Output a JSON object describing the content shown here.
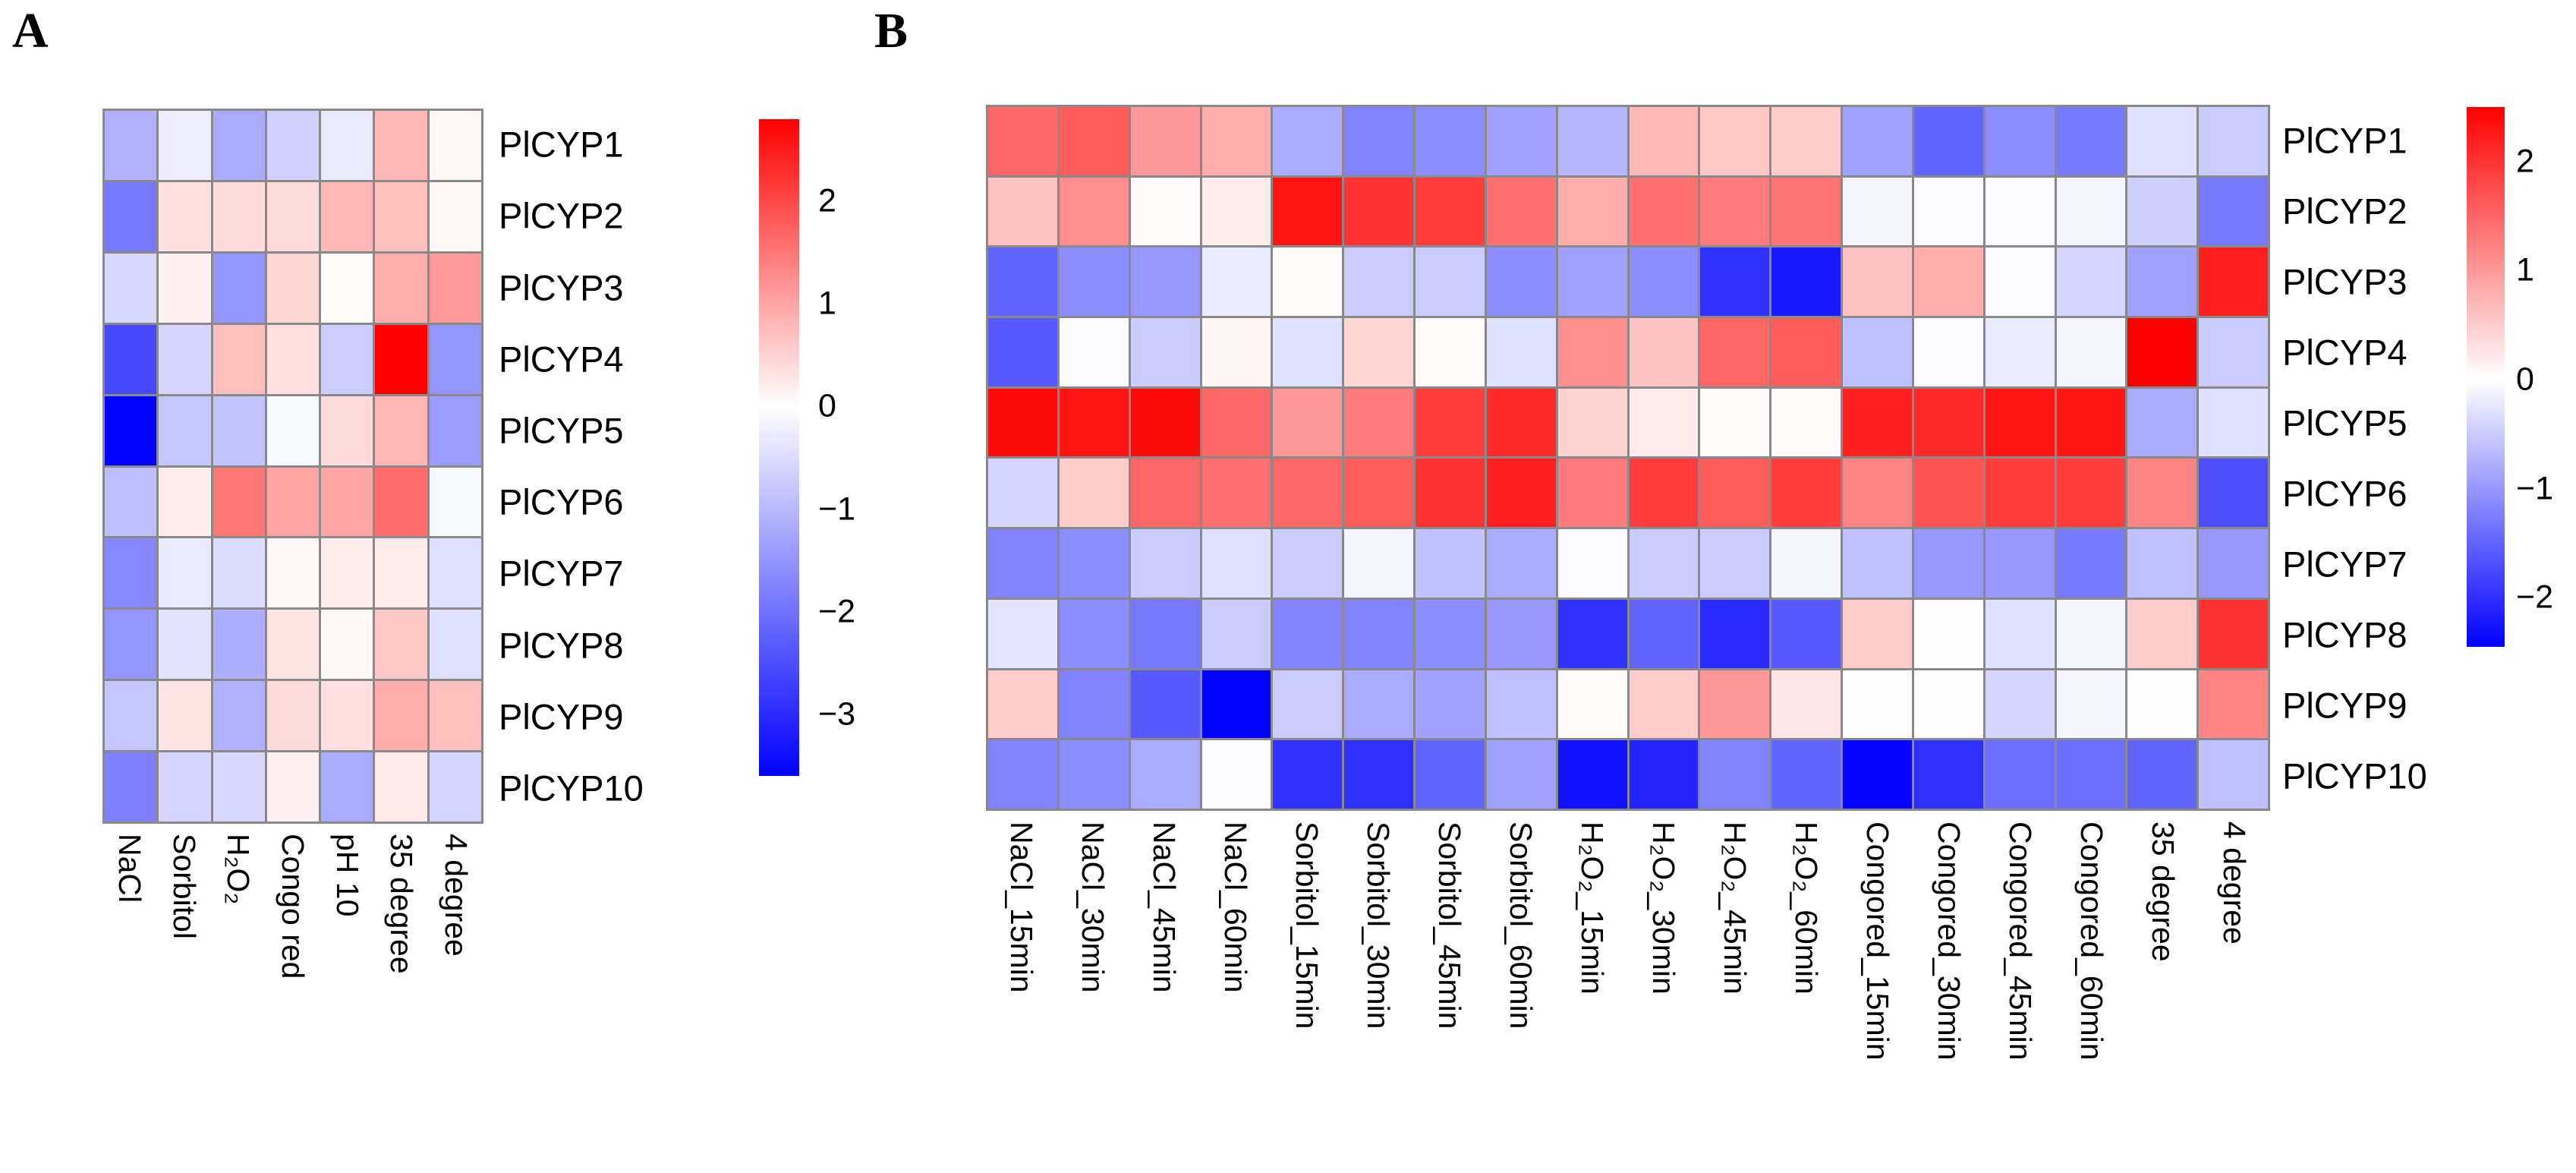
{
  "figure": {
    "type": "dual-heatmap-figure",
    "background": "#ffffff"
  },
  "colors": {
    "positive_max": "#ff0000",
    "zero": "#ffffff",
    "negative_min": "#0000ff",
    "cell_border": "#898989",
    "text": "#000000"
  },
  "chart_data": [
    {
      "type": "heatmap",
      "title": "A",
      "rows": [
        "PlCYP1",
        "PlCYP2",
        "PlCYP3",
        "PlCYP4",
        "PlCYP5",
        "PlCYP6",
        "PlCYP7",
        "PlCYP8",
        "PlCYP9",
        "PlCYP10"
      ],
      "columns": [
        "NaCl",
        "Sorbitol",
        "H₂O₂",
        "Congo red",
        "pH 10",
        "35 degree",
        "4 degree"
      ],
      "values": [
        [
          -1.1,
          -0.25,
          -1.2,
          -0.65,
          -0.3,
          0.8,
          0.1
        ],
        [
          -1.9,
          0.35,
          0.4,
          0.4,
          0.8,
          0.7,
          0.1
        ],
        [
          -0.55,
          0.15,
          -1.5,
          0.45,
          0.05,
          0.9,
          1.1
        ],
        [
          -2.6,
          -0.6,
          0.7,
          0.35,
          -0.7,
          2.8,
          -1.5
        ],
        [
          -3.6,
          -0.8,
          -0.85,
          -0.1,
          0.4,
          0.8,
          -1.4
        ],
        [
          -0.9,
          0.2,
          1.5,
          1.0,
          1.0,
          1.6,
          -0.1
        ],
        [
          -1.7,
          -0.3,
          -0.5,
          0.1,
          0.2,
          0.2,
          -0.45
        ],
        [
          -1.5,
          -0.4,
          -1.15,
          0.3,
          0.1,
          0.6,
          -0.45
        ],
        [
          -0.8,
          0.3,
          -1.1,
          0.4,
          0.35,
          0.9,
          0.7
        ],
        [
          -1.8,
          -0.6,
          -0.55,
          0.15,
          -1.2,
          0.25,
          -0.6
        ]
      ],
      "colorscale": {
        "min": -3.6,
        "max": 2.8,
        "min_color": "#0000ff",
        "mid_color": "#ffffff",
        "max_color": "#ff0000"
      },
      "legend_tick_values": [
        2,
        1,
        0,
        -1,
        -2,
        -3
      ],
      "legend_tick_labels": [
        "2",
        "1",
        "0",
        "−1",
        "−2",
        "−3"
      ],
      "legend_position": "right",
      "grid": true
    },
    {
      "type": "heatmap",
      "title": "B",
      "rows": [
        "PlCYP1",
        "PlCYP2",
        "PlCYP3",
        "PlCYP4",
        "PlCYP5",
        "PlCYP6",
        "PlCYP7",
        "PlCYP8",
        "PlCYP9",
        "PlCYP10"
      ],
      "columns": [
        "NaCl_15min",
        "NaCl_30min",
        "NaCl_45min",
        "NaCl_60min",
        "Sorbitol_15min",
        "Sorbitol_30min",
        "Sorbitol_45min",
        "Sorbitol_60min",
        "H₂O₂_15min",
        "H₂O₂_30min",
        "H₂O₂_45min",
        "H₂O₂_60min",
        "Congored_15min",
        "Congored_30min",
        "Congored_45min",
        "Congored_60min",
        "35 degree",
        "4 degree"
      ],
      "values": [
        [
          1.5,
          1.6,
          1.0,
          0.8,
          -0.8,
          -1.2,
          -1.1,
          -0.9,
          -0.7,
          0.7,
          0.55,
          0.5,
          -0.9,
          -1.5,
          -1.1,
          -1.3,
          -0.3,
          -0.5
        ],
        [
          0.6,
          1.1,
          0.05,
          0.2,
          2.3,
          2.0,
          1.9,
          1.4,
          0.8,
          1.4,
          1.3,
          1.35,
          -0.1,
          -0.05,
          -0.05,
          -0.1,
          -0.45,
          -1.3
        ],
        [
          -1.5,
          -1.1,
          -1.0,
          -0.2,
          0.05,
          -0.5,
          -0.5,
          -1.1,
          -0.9,
          -1.1,
          -2.0,
          -2.2,
          0.6,
          0.8,
          -0.05,
          -0.4,
          -0.9,
          2.2
        ],
        [
          -1.6,
          -0.05,
          -0.5,
          0.1,
          -0.3,
          0.4,
          0.05,
          -0.3,
          1.1,
          0.6,
          1.5,
          1.6,
          -0.6,
          -0.05,
          -0.2,
          -0.1,
          2.5,
          -0.5
        ],
        [
          2.4,
          2.3,
          2.4,
          1.5,
          1.0,
          1.3,
          1.9,
          2.1,
          0.45,
          0.2,
          0.05,
          0.05,
          2.2,
          2.1,
          2.3,
          2.3,
          -0.8,
          -0.3
        ],
        [
          -0.4,
          0.5,
          1.5,
          1.4,
          1.5,
          1.6,
          2.0,
          2.2,
          1.3,
          1.9,
          1.6,
          1.9,
          1.2,
          1.7,
          1.9,
          1.9,
          1.2,
          -1.7
        ],
        [
          -1.2,
          -1.1,
          -0.5,
          -0.3,
          -0.5,
          -0.1,
          -0.6,
          -0.8,
          -0.05,
          -0.5,
          -0.5,
          -0.1,
          -0.6,
          -1.0,
          -1.0,
          -1.3,
          -0.6,
          -1.0
        ],
        [
          -0.25,
          -1.1,
          -1.3,
          -0.5,
          -1.2,
          -1.2,
          -1.1,
          -1.0,
          -2.0,
          -1.5,
          -2.05,
          -1.6,
          0.5,
          0.02,
          -0.3,
          -0.1,
          0.5,
          2.0
        ],
        [
          0.5,
          -1.2,
          -1.6,
          -2.45,
          -0.5,
          -0.8,
          -0.9,
          -0.6,
          0.05,
          0.5,
          1.0,
          0.25,
          0.02,
          0.02,
          -0.4,
          -0.1,
          0.02,
          1.2
        ],
        [
          -1.2,
          -1.1,
          -0.8,
          -0.05,
          -2.0,
          -2.0,
          -1.5,
          -0.9,
          -2.3,
          -2.1,
          -1.2,
          -1.5,
          -2.4,
          -2.0,
          -1.4,
          -1.4,
          -1.5,
          -0.6
        ]
      ],
      "colorscale": {
        "min": -2.45,
        "max": 2.5,
        "min_color": "#0000ff",
        "mid_color": "#ffffff",
        "max_color": "#ff0000"
      },
      "legend_tick_values": [
        2,
        1,
        0,
        -1,
        -2
      ],
      "legend_tick_labels": [
        "2",
        "1",
        "0",
        "−1",
        "−2"
      ],
      "legend_position": "right",
      "grid": true
    }
  ]
}
